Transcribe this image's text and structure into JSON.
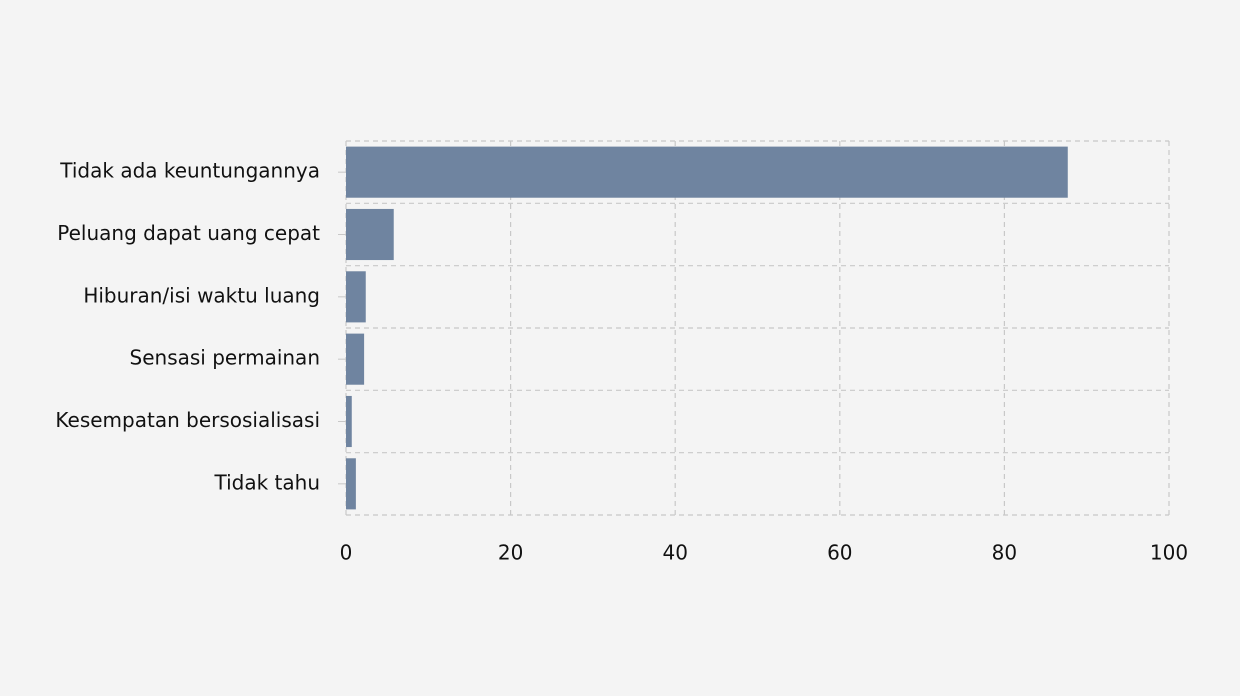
{
  "chart_data": {
    "type": "hbar",
    "categories": [
      "Tidak ada keuntungannya",
      "Peluang dapat uang cepat",
      "Hiburan/isi waktu luang",
      "Sensasi permainan",
      "Kesempatan bersosialisasi",
      "Tidak tahu"
    ],
    "values": [
      87.7,
      5.8,
      2.4,
      2.2,
      0.7,
      1.2
    ],
    "color": "#6f84a0",
    "xlim": [
      0,
      100
    ],
    "xticks": [
      0,
      20,
      40,
      60,
      80,
      100
    ],
    "grid": true
  }
}
